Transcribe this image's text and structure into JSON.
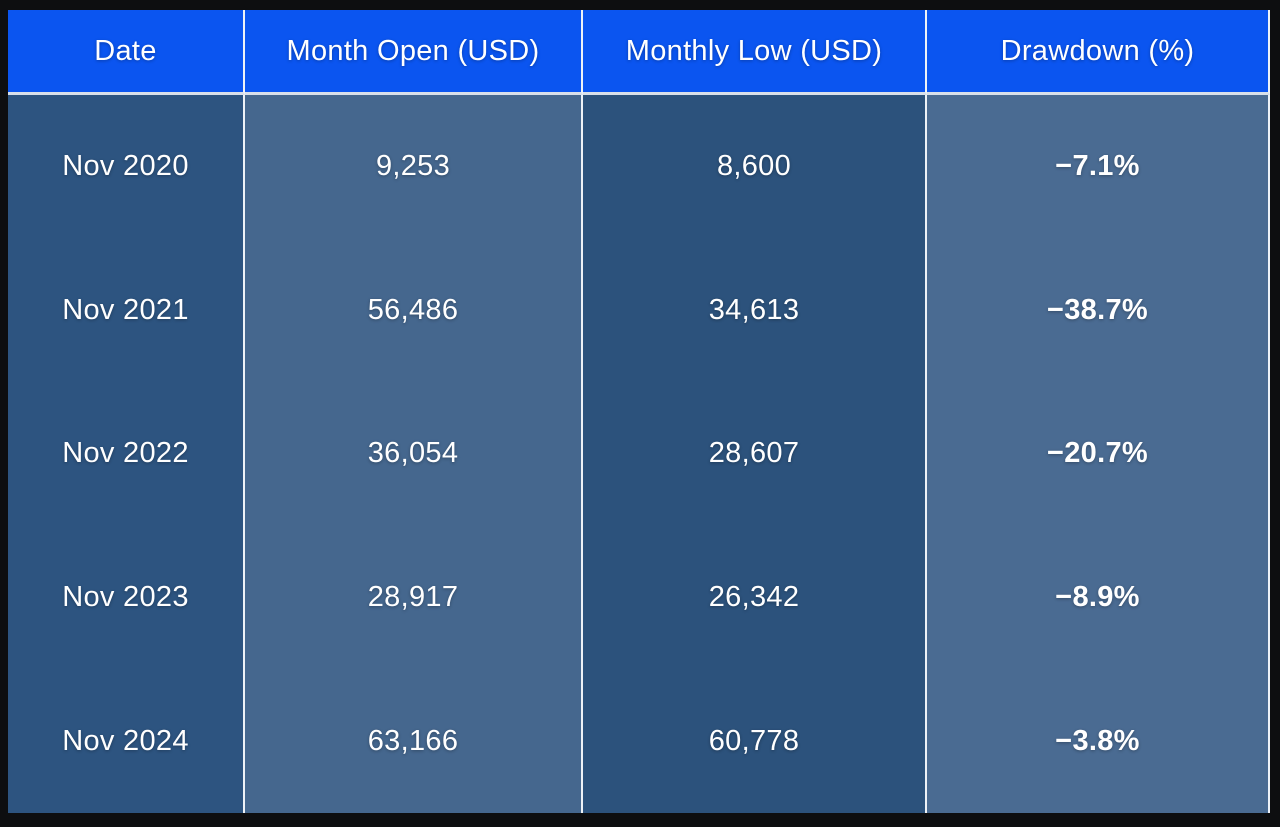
{
  "table": {
    "columns": [
      {
        "label": "Date"
      },
      {
        "label": "Month Open (USD)"
      },
      {
        "label": "Monthly Low (USD)"
      },
      {
        "label": "Drawdown (%)"
      }
    ],
    "rows": [
      {
        "date": "Nov 2020",
        "open": "9,253",
        "low": "8,600",
        "drawdown": "−7.1%"
      },
      {
        "date": "Nov 2021",
        "open": "56,486",
        "low": "34,613",
        "drawdown": "−38.7%"
      },
      {
        "date": "Nov 2022",
        "open": "36,054",
        "low": "28,607",
        "drawdown": "−20.7%"
      },
      {
        "date": "Nov 2023",
        "open": "28,917",
        "low": "26,342",
        "drawdown": "−8.9%"
      },
      {
        "date": "Nov 2024",
        "open": "63,166",
        "low": "60,778",
        "drawdown": "−3.8%"
      }
    ]
  },
  "colors": {
    "page_bg": "#0d0e10",
    "header_bg": "#0b55f0",
    "col1_bg": "#2d5480",
    "col2_bg": "#45678e",
    "col3_bg": "#2c527c",
    "col4_bg": "#4a6b92",
    "separator": "#eef2f7",
    "header_divider": "#d9e0ea",
    "text": "#ffffff"
  },
  "chart_data": {
    "type": "table",
    "columns": [
      "Date",
      "Month Open (USD)",
      "Monthly Low (USD)",
      "Drawdown (%)"
    ],
    "rows": [
      [
        "Nov 2020",
        9253,
        8600,
        -7.1
      ],
      [
        "Nov 2021",
        56486,
        34613,
        -38.7
      ],
      [
        "Nov 2022",
        36054,
        28607,
        -20.7
      ],
      [
        "Nov 2023",
        28917,
        26342,
        -8.9
      ],
      [
        "Nov 2024",
        63166,
        60778,
        -3.8
      ]
    ]
  }
}
